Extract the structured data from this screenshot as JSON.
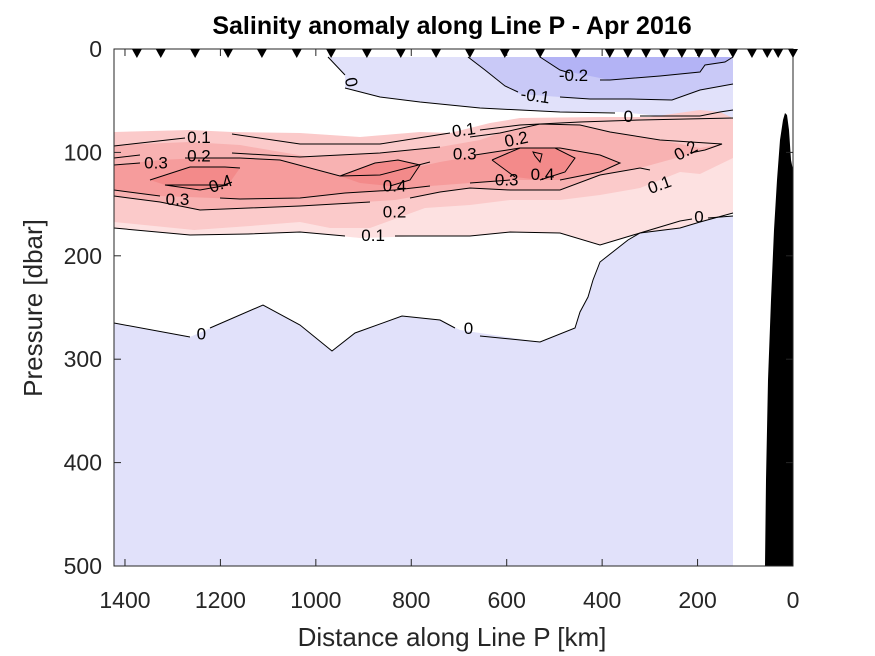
{
  "chart_data": {
    "type": "contour",
    "title": "Salinity anomaly along Line P - Apr 2016",
    "xlabel": "Distance along Line P [km]",
    "ylabel": "Pressure [dbar]",
    "xlim": [
      1423,
      0
    ],
    "ylim": [
      0,
      500
    ],
    "x_reversed": true,
    "y_reversed": true,
    "xticks": [
      1400,
      1200,
      1000,
      800,
      600,
      400,
      200,
      0
    ],
    "xtick_labels": [
      "1400",
      "1200",
      "1000",
      "800",
      "600",
      "400",
      "200",
      "0"
    ],
    "yticks": [
      0,
      100,
      200,
      300,
      400,
      500
    ],
    "ytick_labels": [
      "0",
      "100",
      "200",
      "300",
      "400",
      "500"
    ],
    "contour_levels": [
      -0.2,
      -0.1,
      0,
      0.1,
      0.2,
      0.3,
      0.4
    ],
    "fill_colors": {
      "lt_-0.1": "#b3b3f5",
      "-0.1_to_0_upper": "#c9c9f7",
      "lt_0": "#e1e1fa",
      "0_to_0.1": "#fde1e1",
      "0.1_to_0.2": "#fbcaca",
      "0.2_to_0.3": "#f8b2b2",
      "0.3_to_0.4": "#f69c9c",
      "gt_0.4": "#f38a8a",
      "bathymetry": "#000000"
    },
    "station_distances_km": [
      1375,
      1325,
      1253,
      1184,
      1113,
      1040,
      968,
      893,
      822,
      748,
      677,
      604,
      530,
      455,
      384,
      346,
      308,
      270,
      233,
      197,
      163,
      126,
      86,
      54,
      31,
      0
    ],
    "data_extent_km": [
      1423,
      126
    ],
    "bathymetry_top_dbar": 62,
    "contour_labels": [
      {
        "text": "-0.2",
        "km": 460,
        "dbar": 25
      },
      {
        "text": "-0.1",
        "km": 540,
        "dbar": 45
      },
      {
        "text": "0",
        "km": 345,
        "dbar": 65
      },
      {
        "text": "0",
        "km": 925,
        "dbar": 32
      },
      {
        "text": "0.1",
        "km": 1245,
        "dbar": 85
      },
      {
        "text": "0.2",
        "km": 1245,
        "dbar": 103
      },
      {
        "text": "0.3",
        "km": 1335,
        "dbar": 110
      },
      {
        "text": "0.4",
        "km": 1200,
        "dbar": 130
      },
      {
        "text": "0.3",
        "km": 1290,
        "dbar": 145
      },
      {
        "text": "0.4",
        "km": 835,
        "dbar": 132
      },
      {
        "text": "0.2",
        "km": 835,
        "dbar": 157
      },
      {
        "text": "0.1",
        "km": 880,
        "dbar": 180
      },
      {
        "text": "0.1",
        "km": 690,
        "dbar": 78
      },
      {
        "text": "0.3",
        "km": 688,
        "dbar": 101
      },
      {
        "text": "0.2",
        "km": 580,
        "dbar": 87
      },
      {
        "text": "0.3",
        "km": 600,
        "dbar": 126
      },
      {
        "text": "0.4",
        "km": 525,
        "dbar": 121
      },
      {
        "text": "0.2",
        "km": 225,
        "dbar": 98
      },
      {
        "text": "0.1",
        "km": 280,
        "dbar": 131
      },
      {
        "text": "0",
        "km": 197,
        "dbar": 162
      },
      {
        "text": "0",
        "km": 1240,
        "dbar": 275
      },
      {
        "text": "0",
        "km": 680,
        "dbar": 270
      }
    ]
  }
}
